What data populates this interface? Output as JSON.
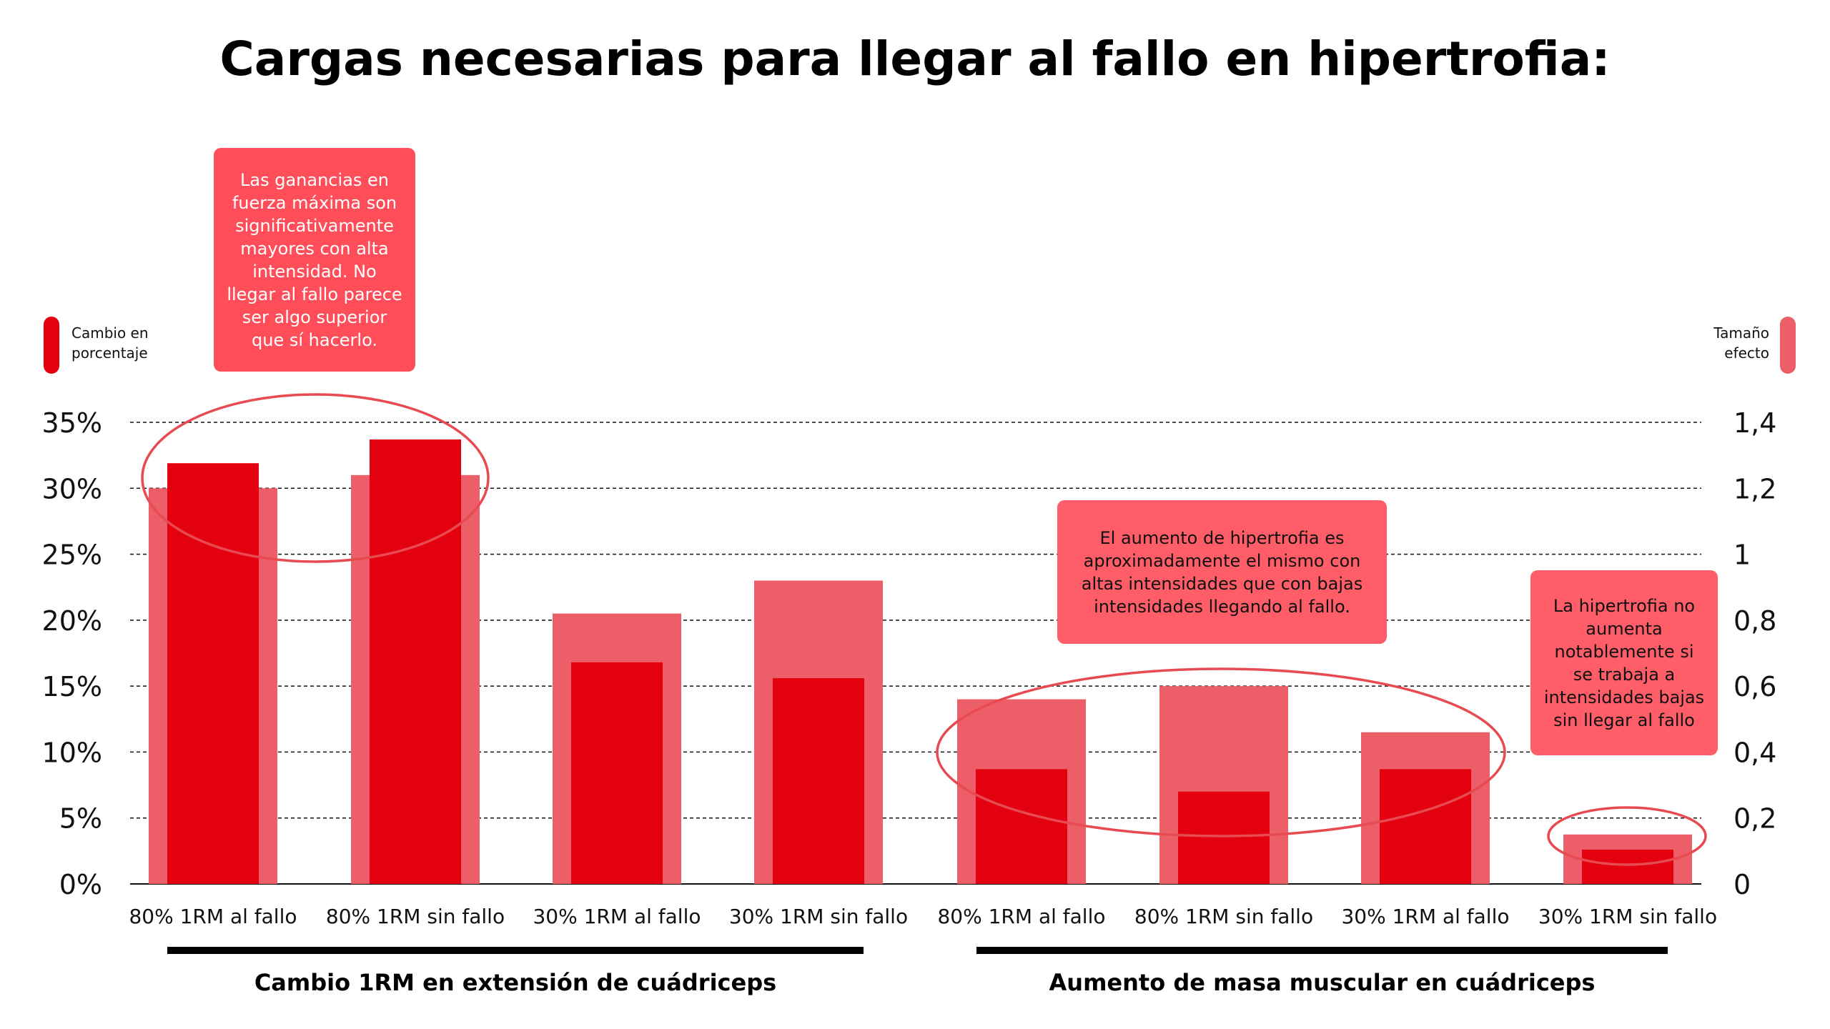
{
  "title": "Cargas necesarias para llegar al fallo en hipertrofia:",
  "colors": {
    "percent_bar": "#e3000f",
    "effect_bar": "#ec5f69",
    "note_bg": "#ff4d5a",
    "ellipse": "#e84a52"
  },
  "legend": {
    "left_label_line1": "Cambio en",
    "left_label_line2": "porcentaje",
    "right_label_line1": "Tamaño",
    "right_label_line2": "efecto"
  },
  "notes": {
    "strength": "Las ganancias en fuerza máxima son significativamente mayores con alta intensidad. No llegar al fallo parece ser algo superior que sí hacerlo.",
    "hypertrophy": "El aumento de hipertrofia es aproximadamente el mismo con altas intensidades que con bajas intensidades llegando al fallo.",
    "low_intensity": "La hipertrofia no aumenta notablemente si se trabaja a intensidades bajas sin llegar al fallo"
  },
  "chart_data": {
    "type": "bar",
    "categories": [
      "80% 1RM al fallo",
      "80% 1RM sin fallo",
      "30% 1RM al fallo",
      "30% 1RM sin fallo",
      "80% 1RM al fallo",
      "80% 1RM sin fallo",
      "30% 1RM al fallo",
      "30% 1RM sin fallo"
    ],
    "groups": [
      {
        "label": "Cambio 1RM en extensión de cuádriceps",
        "categories": [
          0,
          1,
          2,
          3
        ]
      },
      {
        "label": "Aumento de masa muscular en cuádriceps",
        "categories": [
          4,
          5,
          6,
          7
        ]
      }
    ],
    "series": [
      {
        "name": "Cambio en porcentaje",
        "axis": "left",
        "values": [
          31.9,
          33.7,
          16.8,
          15.6,
          8.7,
          7.0,
          8.7,
          2.6
        ]
      },
      {
        "name": "Tamaño efecto",
        "axis": "right",
        "values": [
          1.2,
          1.24,
          0.82,
          0.92,
          0.56,
          0.6,
          0.46,
          0.15
        ]
      }
    ],
    "y_left": {
      "min": 0,
      "max": 35,
      "ticks": [
        "0%",
        "5%",
        "10%",
        "15%",
        "20%",
        "25%",
        "30%",
        "35%"
      ]
    },
    "y_right": {
      "min": 0,
      "max": 1.4,
      "ticks": [
        "0",
        "0,2",
        "0,4",
        "0,6",
        "0,8",
        "1",
        "1,2",
        "1,4"
      ]
    },
    "grid": "dashed horizontal"
  }
}
